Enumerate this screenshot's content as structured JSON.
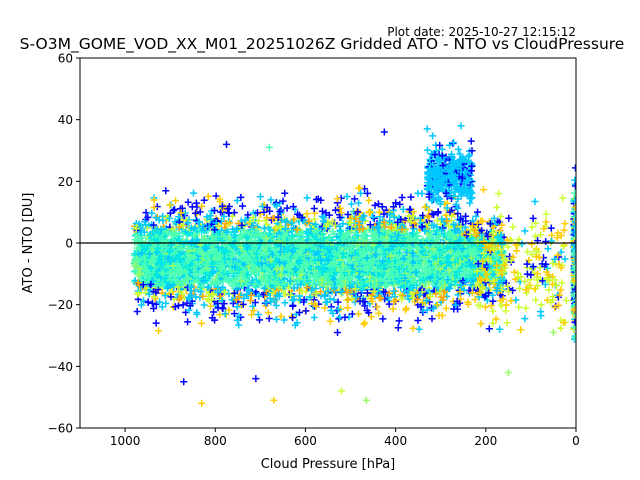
{
  "chart_data": {
    "type": "scatter",
    "title": "S-O3M_GOME_VOD_XX_M01_20251026Z Gridded ATO - NTO vs CloudPressure",
    "subtitle": "Plot date: 2025-10-27 12:15:12",
    "xlabel": "Cloud Pressure [hPa]",
    "ylabel": "ATO - NTO [DU]",
    "xlim": [
      1100,
      0
    ],
    "ylim": [
      -60,
      60
    ],
    "x_reversed": true,
    "xticks": [
      1000,
      800,
      600,
      400,
      200,
      0
    ],
    "yticks": [
      -60,
      -40,
      -20,
      0,
      20,
      40,
      60
    ],
    "grid": false,
    "marker": "+",
    "zero_line": 0,
    "palette": [
      "#0000ff",
      "#00c8ff",
      "#00e5e5",
      "#4dffb3",
      "#99ff66",
      "#ccff33",
      "#ffcc00",
      "#ffaa00"
    ],
    "clusters": [
      {
        "x_range": [
          980,
          160
        ],
        "y_center": -5,
        "y_spread": 14,
        "note": "dense main cloud"
      },
      {
        "x_range": [
          330,
          230
        ],
        "y_center": 22,
        "y_spread": 8,
        "note": "cyan cluster"
      },
      {
        "x_range": [
          5,
          0
        ],
        "y_center": -5,
        "y_spread": 18,
        "note": "strip at 0 hPa"
      }
    ],
    "outliers": [
      {
        "x": 830,
        "y": -52
      },
      {
        "x": 465,
        "y": -51
      },
      {
        "x": 520,
        "y": -48
      },
      {
        "x": 670,
        "y": -51
      },
      {
        "x": 775,
        "y": 32
      },
      {
        "x": 680,
        "y": 31
      },
      {
        "x": 425,
        "y": 36
      },
      {
        "x": 330,
        "y": 37
      },
      {
        "x": 255,
        "y": 38
      },
      {
        "x": 95,
        "y": 8
      },
      {
        "x": 150,
        "y": -42
      },
      {
        "x": 50,
        "y": -29
      },
      {
        "x": 870,
        "y": -45
      },
      {
        "x": 710,
        "y": -44
      }
    ]
  }
}
